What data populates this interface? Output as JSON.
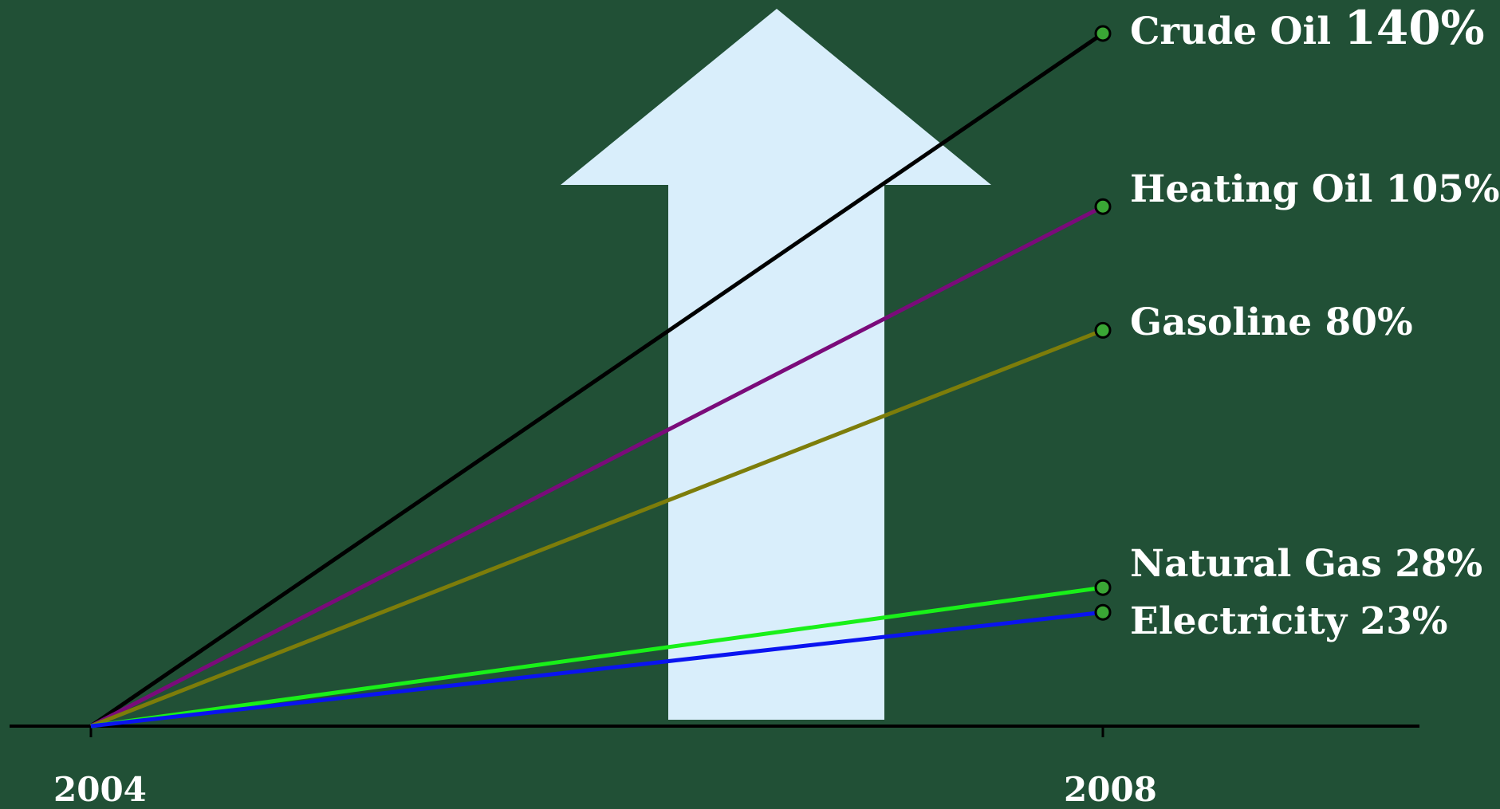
{
  "background_color": "#215036",
  "arrow_color": "#d9eefb",
  "chart_data": {
    "type": "line",
    "x": [
      "2004",
      "2008"
    ],
    "x_tick_labels": [
      "2004",
      "2008"
    ],
    "ylim": [
      0,
      140
    ],
    "grid": false,
    "legend": "direct labels at right end of each line",
    "series": [
      {
        "name": "Crude Oil",
        "pct_text": "140%",
        "values": [
          0,
          140
        ],
        "color": "#000000"
      },
      {
        "name": "Heating Oil",
        "pct_text": "105%",
        "values": [
          0,
          105
        ],
        "color": "#7a0b7a"
      },
      {
        "name": "Gasoline",
        "pct_text": "80%",
        "values": [
          0,
          80
        ],
        "color": "#7d7d0a"
      },
      {
        "name": "Natural Gas",
        "pct_text": "28%",
        "values": [
          0,
          28
        ],
        "color": "#19f019"
      },
      {
        "name": "Electricity",
        "pct_text": "23%",
        "values": [
          0,
          23
        ],
        "color": "#0a14f0"
      }
    ]
  }
}
